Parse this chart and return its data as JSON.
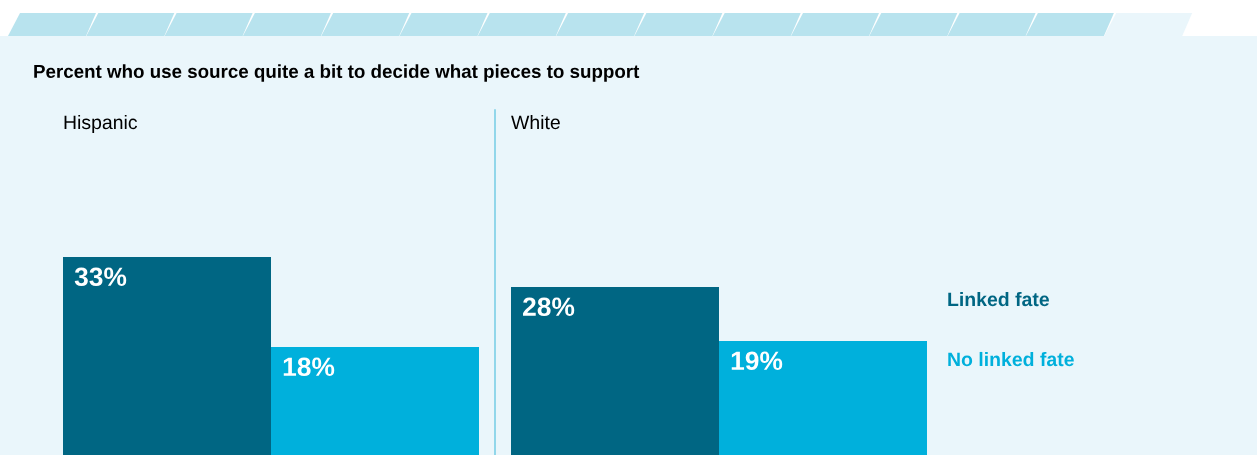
{
  "chart_data": [
    {
      "type": "bar",
      "title": "Percent who use source quite a bit to decide what pieces to support",
      "subtitle": "Hispanic",
      "categories": [
        null
      ],
      "series": [
        {
          "color": "#006683",
          "values": [
            33
          ],
          "value_labels": [
            "33%"
          ]
        },
        {
          "color": "#00b0dc",
          "values": [
            18
          ],
          "value_labels": [
            "18%"
          ]
        }
      ]
    },
    {
      "type": "bar",
      "subtitle": "White",
      "categories": [
        null
      ],
      "series": [
        {
          "name": "Linked fate",
          "color": "#006683",
          "values": [
            28
          ],
          "value_labels": [
            "28%"
          ]
        },
        {
          "name": "No linked fate",
          "color": "#00b0dc",
          "values": [
            19
          ],
          "value_labels": [
            "19%"
          ]
        }
      ]
    }
  ]
}
